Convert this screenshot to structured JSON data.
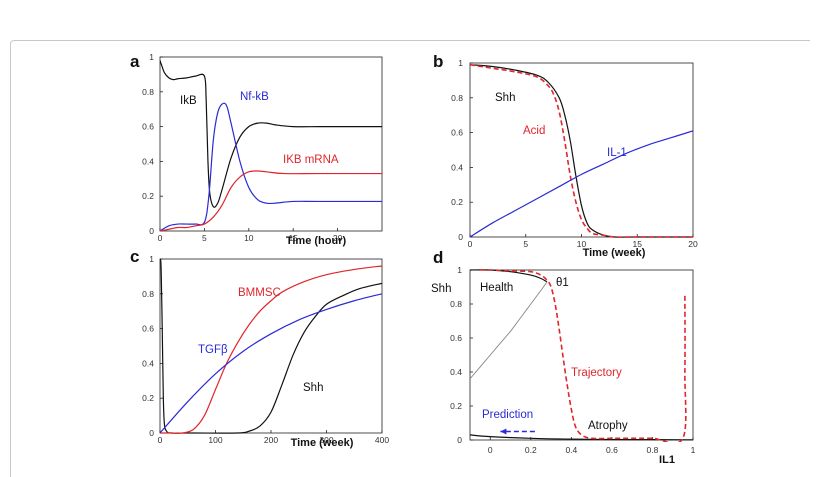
{
  "colors": {
    "black": "#111111",
    "blue": "#2a2ad6",
    "red": "#e0262b",
    "gray": "#888888"
  },
  "chart_data": [
    {
      "panel": "a",
      "type": "line",
      "xlabel": "Time (hour)",
      "xlim": [
        0,
        25
      ],
      "ylim": [
        0,
        1
      ],
      "xticks": [
        0,
        5,
        10,
        15,
        20
      ],
      "yticks": [
        0,
        0.2,
        0.4,
        0.6,
        0.8,
        1
      ],
      "annotations": [
        "IkB",
        "Nf-kB",
        "IKB mRNA"
      ],
      "series": [
        {
          "name": "IkB",
          "color": "black",
          "x": [
            0,
            0.2,
            0.5,
            1,
            1.5,
            2,
            3,
            4,
            5,
            5.2,
            5.4,
            5.6,
            6,
            6.5,
            7,
            8,
            9,
            10,
            11,
            12,
            13,
            15,
            18,
            21,
            25
          ],
          "y": [
            0.98,
            0.95,
            0.91,
            0.88,
            0.87,
            0.875,
            0.88,
            0.89,
            0.89,
            0.75,
            0.4,
            0.22,
            0.14,
            0.16,
            0.24,
            0.42,
            0.54,
            0.6,
            0.62,
            0.62,
            0.61,
            0.6,
            0.6,
            0.6,
            0.6
          ]
        },
        {
          "name": "Nf-kB",
          "color": "blue",
          "x": [
            0,
            1,
            2,
            3,
            4,
            5,
            5.5,
            6,
            6.5,
            7,
            7.5,
            8,
            9,
            10,
            11,
            12,
            13,
            15,
            18,
            25
          ],
          "y": [
            0.0,
            0.03,
            0.04,
            0.04,
            0.04,
            0.05,
            0.2,
            0.52,
            0.68,
            0.73,
            0.72,
            0.62,
            0.4,
            0.25,
            0.18,
            0.16,
            0.16,
            0.17,
            0.17,
            0.17
          ]
        },
        {
          "name": "IKB mRNA",
          "color": "red",
          "x": [
            0,
            1,
            2,
            3,
            4,
            5,
            6,
            7,
            8,
            9,
            10,
            11,
            12,
            14,
            18,
            25
          ],
          "y": [
            0.0,
            0.01,
            0.02,
            0.02,
            0.03,
            0.04,
            0.08,
            0.15,
            0.25,
            0.31,
            0.34,
            0.345,
            0.34,
            0.33,
            0.33,
            0.33
          ]
        }
      ]
    },
    {
      "panel": "b",
      "type": "line",
      "xlabel": "Time (week)",
      "xlim": [
        0,
        20
      ],
      "ylim": [
        0,
        1
      ],
      "xticks": [
        0,
        5,
        10,
        15,
        20
      ],
      "yticks": [
        0,
        0.2,
        0.4,
        0.6,
        0.8,
        1
      ],
      "annotations": [
        "Shh",
        "Acid",
        "IL-1"
      ],
      "series": [
        {
          "name": "Shh",
          "color": "black",
          "x": [
            0,
            2,
            4,
            6,
            7,
            8,
            8.5,
            9,
            9.5,
            10,
            10.5,
            11,
            12,
            13,
            15,
            20
          ],
          "y": [
            0.99,
            0.98,
            0.96,
            0.93,
            0.89,
            0.8,
            0.7,
            0.55,
            0.35,
            0.18,
            0.08,
            0.04,
            0.01,
            0.0,
            0.0,
            0.0
          ]
        },
        {
          "name": "Acid",
          "color": "red",
          "dashed": true,
          "x": [
            0,
            2,
            4,
            6,
            7,
            7.5,
            8,
            8.5,
            9,
            9.5,
            10,
            10.5,
            11,
            12,
            13,
            15,
            20
          ],
          "y": [
            0.99,
            0.97,
            0.95,
            0.92,
            0.87,
            0.82,
            0.72,
            0.55,
            0.35,
            0.2,
            0.1,
            0.05,
            0.02,
            0.01,
            0.0,
            0.0,
            0.0
          ]
        },
        {
          "name": "IL-1",
          "color": "blue",
          "x": [
            0,
            2,
            4,
            6,
            8,
            10,
            12,
            14,
            16,
            18,
            20
          ],
          "y": [
            0.0,
            0.08,
            0.15,
            0.22,
            0.29,
            0.36,
            0.42,
            0.48,
            0.53,
            0.57,
            0.61
          ]
        }
      ]
    },
    {
      "panel": "c",
      "type": "line",
      "xlabel": "Time (week)",
      "xlim": [
        0,
        400
      ],
      "ylim": [
        0,
        1
      ],
      "xticks": [
        0,
        100,
        200,
        300,
        400
      ],
      "yticks": [
        0,
        0.2,
        0.4,
        0.6,
        0.8,
        1
      ],
      "annotations": [
        "BMMSC",
        "TGFβ",
        "Shh"
      ],
      "series": [
        {
          "name": "Shh",
          "color": "black",
          "x": [
            0,
            2,
            4,
            6,
            8,
            12,
            20,
            60,
            140,
            160,
            180,
            200,
            220,
            240,
            260,
            280,
            300,
            330,
            360,
            400
          ],
          "y": [
            1.0,
            0.95,
            0.6,
            0.2,
            0.05,
            0.01,
            0.0,
            0.0,
            0.0,
            0.01,
            0.04,
            0.12,
            0.28,
            0.45,
            0.58,
            0.67,
            0.74,
            0.79,
            0.83,
            0.86
          ]
        },
        {
          "name": "BMMSC",
          "color": "red",
          "x": [
            0,
            20,
            40,
            60,
            80,
            100,
            120,
            140,
            160,
            180,
            200,
            220,
            260,
            300,
            350,
            400
          ],
          "y": [
            0.0,
            0.0,
            0.0,
            0.02,
            0.1,
            0.25,
            0.4,
            0.52,
            0.62,
            0.7,
            0.76,
            0.81,
            0.87,
            0.91,
            0.94,
            0.96
          ]
        },
        {
          "name": "TGFβ",
          "color": "blue",
          "x": [
            0,
            50,
            100,
            150,
            200,
            250,
            300,
            350,
            400
          ],
          "y": [
            0.0,
            0.18,
            0.34,
            0.47,
            0.57,
            0.65,
            0.71,
            0.76,
            0.8
          ]
        }
      ]
    },
    {
      "panel": "d",
      "type": "line",
      "xlabel": "IL1",
      "ylabel": "Shh",
      "xlim": [
        -0.1,
        1
      ],
      "ylim": [
        0,
        1
      ],
      "xticks": [
        0,
        0.2,
        0.4,
        0.6,
        0.8,
        1
      ],
      "yticks": [
        0,
        0.2,
        0.4,
        0.6,
        0.8,
        1
      ],
      "annotations": [
        "Health",
        "θ1",
        "Trajectory",
        "Prediction",
        "Atrophy"
      ],
      "series": [
        {
          "name": "Health",
          "color": "black",
          "x": [
            -0.1,
            0.0,
            0.1,
            0.2,
            0.25,
            0.28
          ],
          "y": [
            1.0,
            1.0,
            0.99,
            0.97,
            0.95,
            0.93
          ]
        },
        {
          "name": "unstable branch",
          "color": "gray",
          "x": [
            -0.1,
            -0.05,
            0.0,
            0.05,
            0.1,
            0.15,
            0.2,
            0.25,
            0.28
          ],
          "y": [
            0.36,
            0.43,
            0.5,
            0.57,
            0.64,
            0.72,
            0.8,
            0.88,
            0.93
          ]
        },
        {
          "name": "Atrophy",
          "color": "black",
          "x": [
            -0.1,
            0.0,
            0.2,
            0.4,
            0.6,
            0.8,
            1.0
          ],
          "y": [
            0.03,
            0.02,
            0.01,
            0.005,
            0.003,
            0.002,
            0.001
          ]
        },
        {
          "name": "Trajectory",
          "color": "red",
          "dashed": true,
          "x": [
            -0.05,
            0.0,
            0.1,
            0.2,
            0.25,
            0.28,
            0.3,
            0.32,
            0.34,
            0.36,
            0.38,
            0.4,
            0.42,
            0.45,
            0.5,
            0.6,
            0.7,
            0.8,
            0.95,
            0.96,
            0.96
          ],
          "y": [
            1.0,
            1.0,
            0.995,
            0.99,
            0.97,
            0.94,
            0.9,
            0.8,
            0.65,
            0.48,
            0.32,
            0.18,
            0.08,
            0.03,
            0.01,
            0.01,
            0.01,
            0.01,
            0.01,
            0.4,
            0.86
          ]
        },
        {
          "name": "Prediction",
          "color": "blue",
          "dashed": true,
          "arrow": true,
          "x": [
            0.22,
            0.05
          ],
          "y": [
            0.05,
            0.05
          ]
        }
      ]
    }
  ]
}
